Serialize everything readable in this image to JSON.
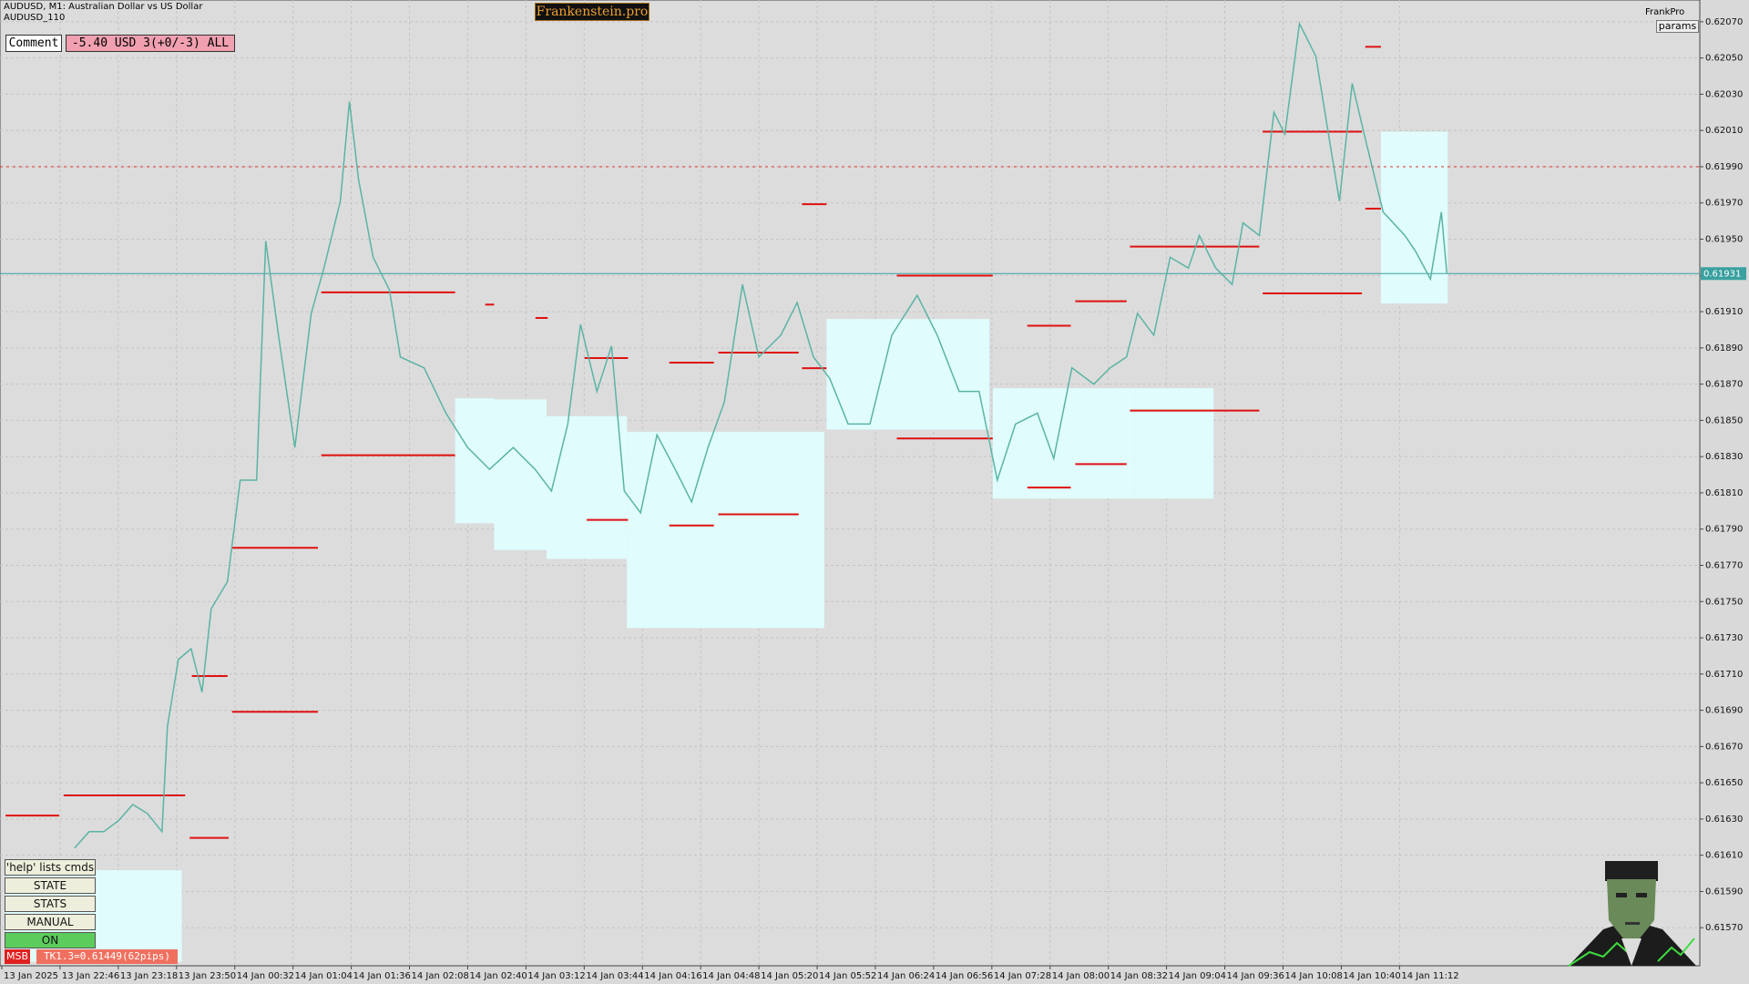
{
  "header": {
    "symbol_line": "AUDUSD, M1:  Australian Dollar vs US Dollar",
    "account": "AUDUSD_110",
    "brand": "Frankenstein.pro",
    "comment_button": "Comment",
    "comment_text": "-5.40 USD 3(+0/-3) ALL",
    "profile": "FrankPro",
    "params_button": "params"
  },
  "panel": {
    "help": "'help' lists cmds",
    "buttons": [
      "STATE",
      "STATS",
      "MANUAL",
      "ON"
    ],
    "msb": "MSB",
    "target": "TK1.3=0.61449(62pips)"
  },
  "price_chart": {
    "type": "line",
    "color": "#5ab4a4",
    "grid": true,
    "x": [
      40,
      48,
      56,
      64,
      72,
      80,
      88,
      91,
      97,
      104,
      110,
      115,
      124,
      131,
      140,
      145,
      152,
      161,
      170,
      177,
      186,
      191,
      196,
      204,
      213,
      219,
      232,
      244,
      256,
      268,
      281,
      293,
      302,
      311,
      318,
      327,
      335,
      342,
      351,
      360,
      370,
      379,
      388,
      397,
      407,
      416,
      428,
      437,
      446,
      455,
      465,
      477,
      489,
      503,
      514,
      526,
      537,
      547,
      557,
      569,
      578,
      588,
      600,
      609,
      618,
      624,
      633,
      642,
      652,
      658,
      667,
      676,
      682,
      691,
      699,
      705,
      713,
      722,
      728,
      735,
      742,
      750,
      759,
      771,
      777,
      785,
      791,
      794
    ],
    "values": [
      0.61614,
      0.61623,
      0.61623,
      0.61629,
      0.61638,
      0.61633,
      0.61623,
      0.61681,
      0.61718,
      0.61724,
      0.617,
      0.61746,
      0.61761,
      0.61817,
      0.61817,
      0.61949,
      0.61897,
      0.61835,
      0.61909,
      0.61934,
      0.61971,
      0.62026,
      0.61983,
      0.6194,
      0.61922,
      0.61885,
      0.61879,
      0.61854,
      0.61835,
      0.61823,
      0.61835,
      0.61823,
      0.61811,
      0.61848,
      0.61903,
      0.61866,
      0.61891,
      0.61811,
      0.61799,
      0.61842,
      0.61823,
      0.61805,
      0.61835,
      0.6186,
      0.61925,
      0.61885,
      0.61897,
      0.61915,
      0.61885,
      0.61873,
      0.61848,
      0.61848,
      0.61897,
      0.61919,
      0.61897,
      0.61866,
      0.61866,
      0.61817,
      0.61848,
      0.61854,
      0.61829,
      0.61879,
      0.6187,
      0.61879,
      0.61885,
      0.61909,
      0.61897,
      0.6194,
      0.61934,
      0.61952,
      0.61934,
      0.61925,
      0.61959,
      0.61952,
      0.6202,
      0.62008,
      0.62069,
      0.62051,
      0.62014,
      0.61971,
      0.62036,
      0.62002,
      0.61965,
      0.61952,
      0.61943,
      0.61928,
      0.61965,
      0.61931
    ],
    "xlim": [
      -1,
      933
    ],
    "ylim": [
      0.61549,
      0.62082
    ],
    "yticks": [
      {
        "value": 0.6157,
        "label": "0.61570"
      },
      {
        "value": 0.6159,
        "label": "0.61590"
      },
      {
        "value": 0.6161,
        "label": "0.61610"
      },
      {
        "value": 0.6163,
        "label": "0.61630"
      },
      {
        "value": 0.6165,
        "label": "0.61650"
      },
      {
        "value": 0.6167,
        "label": "0.61670"
      },
      {
        "value": 0.6169,
        "label": "0.61690"
      },
      {
        "value": 0.6171,
        "label": "0.61710"
      },
      {
        "value": 0.6173,
        "label": "0.61730"
      },
      {
        "value": 0.6175,
        "label": "0.61750"
      },
      {
        "value": 0.6177,
        "label": "0.61770"
      },
      {
        "value": 0.6179,
        "label": "0.61790"
      },
      {
        "value": 0.6181,
        "label": "0.61810"
      },
      {
        "value": 0.6183,
        "label": "0.61830"
      },
      {
        "value": 0.6185,
        "label": "0.61850"
      },
      {
        "value": 0.6187,
        "label": "0.61870"
      },
      {
        "value": 0.6189,
        "label": "0.61890"
      },
      {
        "value": 0.6191,
        "label": "0.61910"
      },
      {
        "value": 0.6193,
        "label": "0.61930"
      },
      {
        "value": 0.6195,
        "label": "0.61950"
      },
      {
        "value": 0.6197,
        "label": "0.61970"
      },
      {
        "value": 0.6199,
        "label": "0.61990"
      },
      {
        "value": 0.6201,
        "label": "0.62010"
      },
      {
        "value": 0.6203,
        "label": "0.62030"
      },
      {
        "value": 0.6205,
        "label": "0.62050"
      },
      {
        "value": 0.6207,
        "label": "0.62070"
      }
    ],
    "xticks": [
      {
        "value": 0,
        "label": "13 Jan 2025"
      },
      {
        "value": 32,
        "label": "13 Jan 22:46"
      },
      {
        "value": 64,
        "label": "13 Jan 23:18"
      },
      {
        "value": 96,
        "label": "13 Jan 23:50"
      },
      {
        "value": 128,
        "label": "14 Jan 00:32"
      },
      {
        "value": 160,
        "label": "14 Jan 01:04"
      },
      {
        "value": 192,
        "label": "14 Jan 01:36"
      },
      {
        "value": 224,
        "label": "14 Jan 02:08"
      },
      {
        "value": 256,
        "label": "14 Jan 02:40"
      },
      {
        "value": 288,
        "label": "14 Jan 03:12"
      },
      {
        "value": 320,
        "label": "14 Jan 03:44"
      },
      {
        "value": 352,
        "label": "14 Jan 04:16"
      },
      {
        "value": 384,
        "label": "14 Jan 04:48"
      },
      {
        "value": 416,
        "label": "14 Jan 05:20"
      },
      {
        "value": 448,
        "label": "14 Jan 05:52"
      },
      {
        "value": 480,
        "label": "14 Jan 06:24"
      },
      {
        "value": 512,
        "label": "14 Jan 06:56"
      },
      {
        "value": 544,
        "label": "14 Jan 07:28"
      },
      {
        "value": 576,
        "label": "14 Jan 08:00"
      },
      {
        "value": 608,
        "label": "14 Jan 08:32"
      },
      {
        "value": 640,
        "label": "14 Jan 09:04"
      },
      {
        "value": 672,
        "label": "14 Jan 09:36"
      },
      {
        "value": 704,
        "label": "14 Jan 10:08"
      },
      {
        "value": 736,
        "label": "14 Jan 10:40"
      },
      {
        "value": 768,
        "label": "14 Jan 11:12"
      }
    ],
    "bid": 0.61931,
    "alert_level": 0.6199
  }
}
